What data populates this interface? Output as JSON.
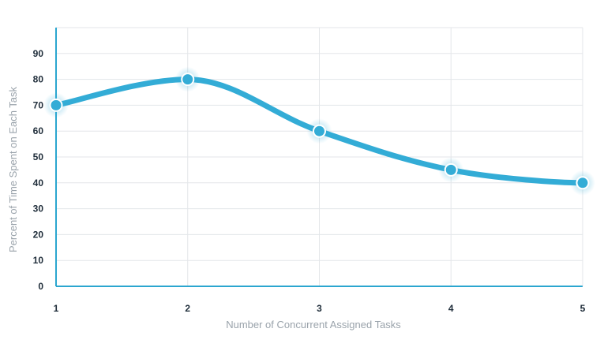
{
  "chart_data": {
    "type": "line",
    "x": [
      1,
      2,
      3,
      4,
      5
    ],
    "series": [
      {
        "values": [
          70,
          80,
          60,
          45,
          40
        ]
      }
    ],
    "xlabel": "Number of Concurrent Assigned Tasks",
    "ylabel": "Percent of Time Spent on Each Task",
    "xlim": [
      1,
      5
    ],
    "ylim": [
      0,
      100
    ],
    "yticks": [
      0,
      10,
      20,
      30,
      40,
      50,
      60,
      70,
      80,
      90
    ],
    "xticks": [
      1,
      2,
      3,
      4,
      5
    ],
    "grid": true,
    "smooth": true,
    "colors": {
      "line": "#33acd6",
      "axis": "#2ba6cf",
      "grid": "#e3e6e9",
      "tick": "#1f2d3a",
      "title": "#9aa3ab"
    }
  }
}
